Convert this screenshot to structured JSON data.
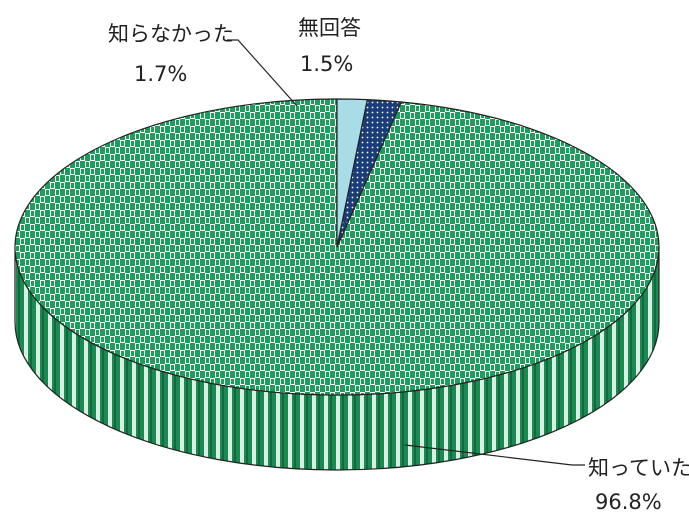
{
  "chart_data": {
    "type": "pie",
    "style": "3d",
    "title": "",
    "legend": "none",
    "slices": [
      {
        "label": "知っていた",
        "value": 96.8,
        "display": "96.8%",
        "color": "#1e9e5c",
        "pattern": "checker-stripes"
      },
      {
        "label": "知らなかった",
        "value": 1.7,
        "display": "1.7%",
        "color": "#1a3d7a",
        "pattern": "dots"
      },
      {
        "label": "無回答",
        "value": 1.5,
        "display": "1.5%",
        "color": "#a8dde8",
        "pattern": "solid"
      }
    ]
  }
}
